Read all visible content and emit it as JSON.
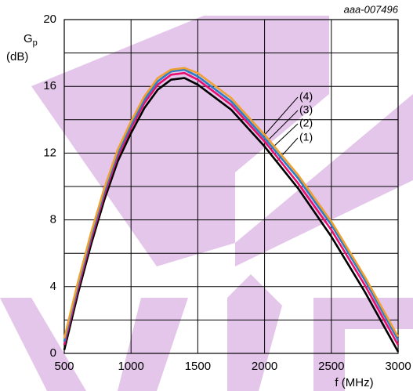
{
  "chart_data": {
    "type": "line",
    "code": "aaa-007496",
    "y_label": "G",
    "y_label_sub": "p",
    "y_unit": "(dB)",
    "x_label": "f (MHz)",
    "x": [
      500,
      600,
      700,
      800,
      900,
      1000,
      1100,
      1200,
      1300,
      1400,
      1500,
      1750,
      2000,
      2250,
      2500,
      2750,
      3000
    ],
    "series": [
      {
        "name": "(1)",
        "color": "#000000",
        "values": [
          0.2,
          3.5,
          6.5,
          9.2,
          11.5,
          13.2,
          14.7,
          15.8,
          16.4,
          16.5,
          16.1,
          14.6,
          12.4,
          9.9,
          7.0,
          3.7,
          0.1
        ]
      },
      {
        "name": "(2)",
        "color": "#e8106e",
        "values": [
          0.5,
          3.8,
          6.8,
          9.5,
          11.8,
          13.5,
          15.0,
          16.1,
          16.7,
          16.8,
          16.4,
          14.9,
          12.7,
          10.2,
          7.4,
          4.1,
          0.5
        ]
      },
      {
        "name": "(3)",
        "color": "#2a7fc8",
        "values": [
          0.7,
          4.0,
          7.0,
          9.7,
          12.0,
          13.7,
          15.2,
          16.3,
          16.9,
          17.0,
          16.6,
          15.1,
          12.9,
          10.5,
          7.7,
          4.4,
          0.8
        ]
      },
      {
        "name": "(4)",
        "color": "#f0a030",
        "values": [
          0.9,
          4.2,
          7.2,
          9.9,
          12.2,
          13.9,
          15.4,
          16.5,
          17.0,
          17.1,
          16.8,
          15.3,
          13.1,
          10.7,
          7.9,
          4.6,
          1.0
        ]
      }
    ],
    "xlim": [
      500,
      3000
    ],
    "xticks": [
      500,
      1000,
      1500,
      2000,
      2500,
      3000
    ],
    "ylim": [
      0,
      20
    ],
    "yticks": [
      0,
      4,
      8,
      12,
      16,
      20
    ],
    "y_grid_minor": [
      2,
      6,
      10,
      14,
      18
    ],
    "grid": true
  }
}
